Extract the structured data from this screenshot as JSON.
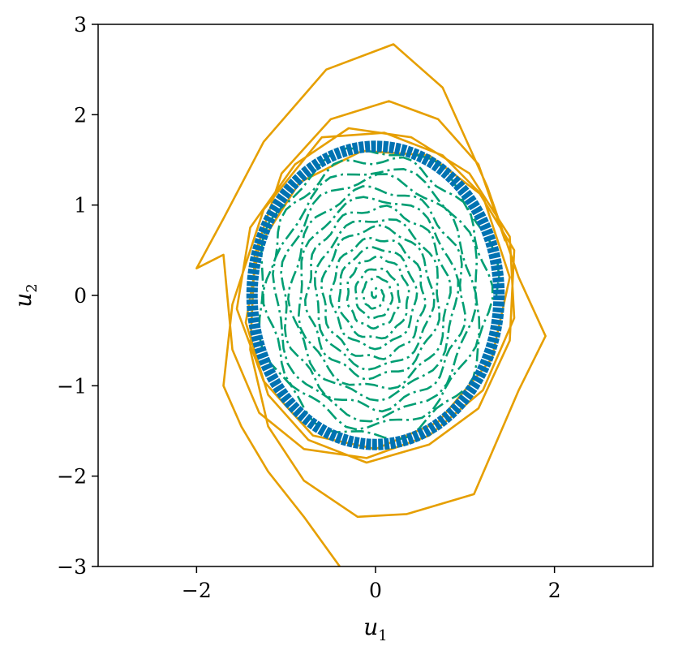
{
  "chart_data": {
    "type": "line",
    "title": "",
    "xlabel": "u",
    "xlabel_sub": "1",
    "ylabel": "u",
    "ylabel_sub": "2",
    "xlim": [
      -3.1,
      3.1
    ],
    "ylim": [
      -3,
      3
    ],
    "xticks": [
      -2,
      0,
      2
    ],
    "xtick_labels": [
      "−2",
      "0",
      "2"
    ],
    "yticks": [
      -3,
      -2,
      -1,
      0,
      1,
      2,
      3
    ],
    "ytick_labels": [
      "−3",
      "−2",
      "−1",
      "0",
      "1",
      "2",
      "3"
    ],
    "grid": false,
    "legend": "none",
    "series": [
      {
        "style": "solid",
        "color": "#E69F00",
        "x": [
          -0.4,
          -0.8,
          -1.2,
          -1.5,
          -1.7,
          -1.6,
          -1.25,
          -0.6,
          0.1,
          0.75,
          1.15,
          1.55,
          1.5,
          1.15,
          0.6,
          -0.1,
          -0.75,
          -1.2,
          -1.45,
          -1.3,
          -0.85,
          -0.15,
          0.6,
          1.2,
          1.5,
          1.3,
          0.7,
          0.0,
          -0.7,
          -1.25,
          -1.55,
          -1.4,
          -0.9,
          -0.3,
          0.4,
          1.05,
          1.5,
          1.55,
          1.2,
          0.6,
          -0.1,
          -0.8,
          -1.3,
          -1.6,
          -1.7,
          -2.0,
          -1.7,
          -1.25,
          -0.55,
          0.2,
          0.75,
          1.25,
          1.6,
          1.9,
          1.6,
          1.1,
          0.35,
          -0.2,
          -0.8,
          -1.2,
          -1.4,
          -1.35,
          -1.05,
          -0.5,
          0.15,
          0.7,
          1.15,
          1.45
        ],
        "y": [
          -3.0,
          -2.45,
          -1.95,
          -1.45,
          -1.0,
          -0.1,
          0.95,
          1.75,
          1.8,
          1.55,
          1.15,
          0.5,
          -0.5,
          -1.25,
          -1.65,
          -1.85,
          -1.6,
          -1.1,
          -0.3,
          0.55,
          1.25,
          1.6,
          1.55,
          1.1,
          0.2,
          -0.7,
          -1.4,
          -1.7,
          -1.55,
          -0.95,
          -0.15,
          0.75,
          1.45,
          1.85,
          1.75,
          1.35,
          0.65,
          -0.25,
          -1.05,
          -1.55,
          -1.8,
          -1.7,
          -1.3,
          -0.6,
          0.45,
          0.3,
          0.85,
          1.7,
          2.5,
          2.78,
          2.3,
          1.2,
          0.2,
          -0.45,
          -1.05,
          -2.2,
          -2.42,
          -2.45,
          -2.05,
          -1.45,
          -0.6,
          0.45,
          1.35,
          1.95,
          2.15,
          1.95,
          1.45,
          0.6
        ]
      },
      {
        "style": "dashdot",
        "color": "#009E73",
        "type": "inward spiral",
        "x_range": [
          -1.35,
          1.35
        ],
        "y_range": [
          -1.65,
          1.65
        ],
        "center": [
          0,
          0
        ]
      },
      {
        "style": "thick solid",
        "color": "#0072B2",
        "type": "closed ellipse",
        "center": [
          0,
          0
        ],
        "semi_axis_x": 1.38,
        "semi_axis_y": 1.65
      }
    ]
  }
}
